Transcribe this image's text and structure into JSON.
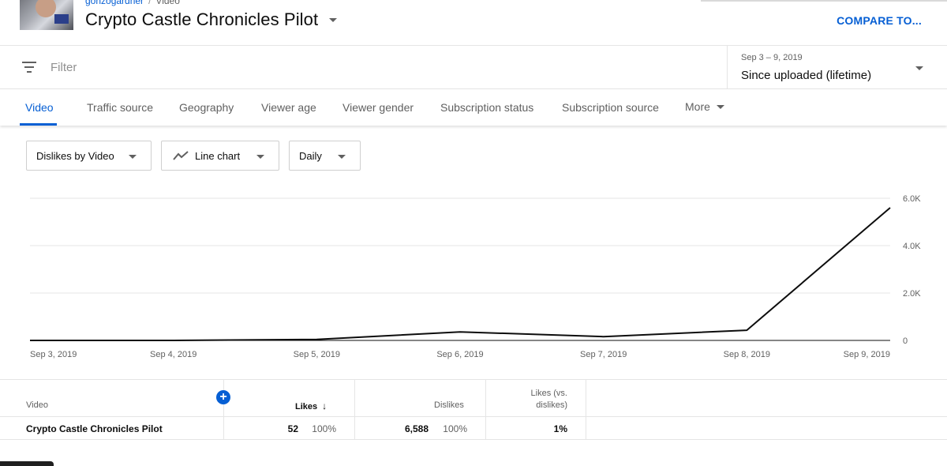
{
  "header": {
    "breadcrumb_channel": "gonzogardner",
    "breadcrumb_separator": "/",
    "breadcrumb_section": "Video",
    "title": "Crypto Castle Chronicles Pilot",
    "compare_label": "COMPARE TO..."
  },
  "filter": {
    "placeholder": "Filter",
    "date_range": "Sep 3 – 9, 2019",
    "period": "Since uploaded (lifetime)"
  },
  "tabs": [
    {
      "label": "Video",
      "active": true
    },
    {
      "label": "Traffic source"
    },
    {
      "label": "Geography"
    },
    {
      "label": "Viewer age"
    },
    {
      "label": "Viewer gender"
    },
    {
      "label": "Subscription status"
    },
    {
      "label": "Subscription source"
    },
    {
      "label": "More"
    }
  ],
  "controls": {
    "metric": "Dislikes by Video",
    "chart_type": "Line chart",
    "granularity": "Daily"
  },
  "chart_data": {
    "type": "line",
    "x": [
      "Sep 3, 2019",
      "Sep 4, 2019",
      "Sep 5, 2019",
      "Sep 6, 2019",
      "Sep 7, 2019",
      "Sep 8, 2019",
      "Sep 9, 2019"
    ],
    "series": [
      {
        "values": [
          0,
          0,
          40,
          360,
          160,
          430,
          5600
        ]
      }
    ],
    "ylim": [
      0,
      6000
    ],
    "yticks": [
      "0",
      "2.0K",
      "4.0K",
      "6.0K"
    ],
    "ytick_values": [
      0,
      2000,
      4000,
      6000
    ],
    "grid": true,
    "line_color": "#0d0d0d"
  },
  "table": {
    "headers": {
      "video": "Video",
      "likes": "Likes",
      "dislikes": "Dislikes",
      "ratio_line1": "Likes (vs.",
      "ratio_line2": "dislikes)"
    },
    "add_label": "+",
    "sort_icon": "↓",
    "row": {
      "video": "Crypto Castle Chronicles Pilot",
      "likes": "52",
      "likes_pct": "100%",
      "dislikes": "6,588",
      "dislikes_pct": "100%",
      "ratio": "1%"
    }
  },
  "colors": {
    "accent": "#065fd4",
    "text": "#0d0d0d",
    "muted": "#606060"
  }
}
